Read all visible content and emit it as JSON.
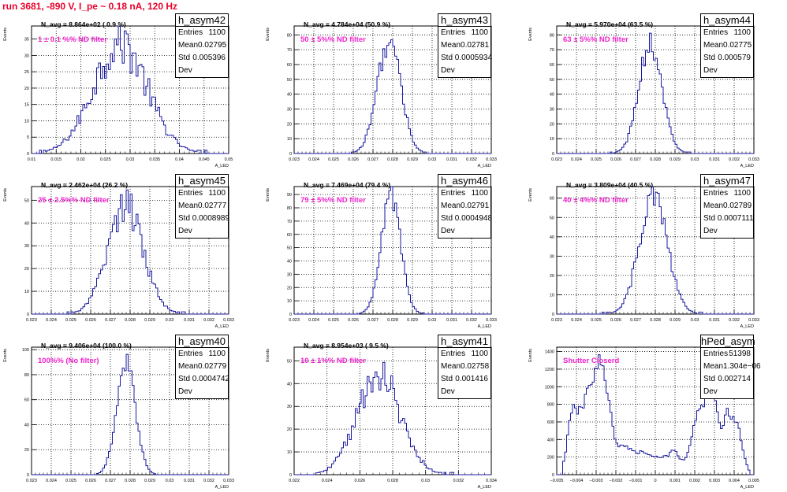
{
  "page_title": "run 3681,  -890 V, I_pe ~ 0.18 nA, 120 Hz",
  "ylabel": "Events",
  "xlabel": "A_LED",
  "colors": {
    "hist": "#1a1aa0",
    "filter_label": "#ee22cc",
    "title": "#e8002a"
  },
  "chart_data": [
    {
      "type": "histogram",
      "name": "h_asym42",
      "navg": "N_avg = 8.864e+02 ( 0.9 %)",
      "filter": "1 ± 0.1 %% ND filter",
      "stats": [
        [
          "Entries",
          "1100"
        ],
        [
          "Mean",
          "0.02795"
        ],
        [
          "Std Dev",
          "0.005396"
        ]
      ],
      "xlim": [
        0.01,
        0.05
      ],
      "ylim": [
        0,
        39
      ],
      "xticks": [
        "0.01",
        "0.015",
        "0.02",
        "0.025",
        "0.03",
        "0.035",
        "0.04",
        "0.045",
        "0.05"
      ],
      "yticks": [
        5,
        10,
        15,
        20,
        25,
        30,
        35
      ],
      "dist": {
        "mean": 0.02795,
        "std": 0.005396,
        "peak": 34,
        "noise": 0.22
      }
    },
    {
      "type": "histogram",
      "name": "h_asym43",
      "navg": "N_avg = 4.784e+04 (50.9 %)",
      "filter": "50 ± 5%% ND filter",
      "stats": [
        [
          "Entries",
          "1100"
        ],
        [
          "Mean",
          "0.02781"
        ],
        [
          "Std Dev",
          "0.0005934"
        ]
      ],
      "xlim": [
        0.023,
        0.033
      ],
      "ylim": [
        0,
        86
      ],
      "xticks": [
        "0.023",
        "0.024",
        "0.025",
        "0.026",
        "0.027",
        "0.028",
        "0.029",
        "0.03",
        "0.031",
        "0.032",
        "0.033"
      ],
      "yticks": [
        10,
        20,
        30,
        40,
        50,
        60,
        70,
        80
      ],
      "dist": {
        "mean": 0.02781,
        "std": 0.0005934,
        "peak": 76,
        "noise": 0.12
      }
    },
    {
      "type": "histogram",
      "name": "h_asym44",
      "navg": "N_avg = 5.970e+04 (63.5 %)",
      "filter": "63 ± 5%% ND filter",
      "stats": [
        [
          "Entries",
          "1100"
        ],
        [
          "Mean",
          "0.02775"
        ],
        [
          "Std Dev",
          "0.000579"
        ]
      ],
      "xlim": [
        0.023,
        0.033
      ],
      "ylim": [
        0,
        86
      ],
      "xticks": [
        "0.023",
        "0.024",
        "0.025",
        "0.026",
        "0.027",
        "0.028",
        "0.029",
        "0.03",
        "0.031",
        "0.032",
        "0.033"
      ],
      "yticks": [
        10,
        20,
        30,
        40,
        50,
        60,
        70,
        80
      ],
      "dist": {
        "mean": 0.02775,
        "std": 0.000579,
        "peak": 75,
        "noise": 0.12
      }
    },
    {
      "type": "histogram",
      "name": "h_asym45",
      "navg": "N_avg = 2.462e+04 (26.2 %)",
      "filter": "25 ± 2.5%% ND filter",
      "stats": [
        [
          "Entries",
          "1100"
        ],
        [
          "Mean",
          "0.02777"
        ],
        [
          "Std Dev",
          "0.0008989"
        ]
      ],
      "xlim": [
        0.023,
        0.033
      ],
      "ylim": [
        0,
        56
      ],
      "xticks": [
        "0.023",
        "0.024",
        "0.025",
        "0.026",
        "0.027",
        "0.028",
        "0.029",
        "0.03",
        "0.031",
        "0.032",
        "0.033"
      ],
      "yticks": [
        10,
        20,
        30,
        40,
        50
      ],
      "dist": {
        "mean": 0.02777,
        "std": 0.0008989,
        "peak": 48,
        "noise": 0.18
      }
    },
    {
      "type": "histogram",
      "name": "h_asym46",
      "navg": "N_avg = 7.469e+04 (79.4 %)",
      "filter": "79 ± 5%% ND filter",
      "stats": [
        [
          "Entries",
          "1100"
        ],
        [
          "Mean",
          "0.02791"
        ],
        [
          "Std Dev",
          "0.0004948"
        ]
      ],
      "xlim": [
        0.023,
        0.033
      ],
      "ylim": [
        0,
        96
      ],
      "xticks": [
        "0.023",
        "0.024",
        "0.025",
        "0.026",
        "0.027",
        "0.028",
        "0.029",
        "0.03",
        "0.031",
        "0.032",
        "0.033"
      ],
      "yticks": [
        10,
        20,
        30,
        40,
        50,
        60,
        70,
        80,
        90
      ],
      "dist": {
        "mean": 0.02791,
        "std": 0.0004948,
        "peak": 88,
        "noise": 0.1
      }
    },
    {
      "type": "histogram",
      "name": "h_asym47",
      "navg": "N_avg = 3.809e+04 (40.5 %)",
      "filter": "40 ± 4%% ND filter",
      "stats": [
        [
          "Entries",
          "1100"
        ],
        [
          "Mean",
          "0.02789"
        ],
        [
          "Std Dev",
          "0.0007111"
        ]
      ],
      "xlim": [
        0.023,
        0.033
      ],
      "ylim": [
        0,
        66
      ],
      "xticks": [
        "0.023",
        "0.024",
        "0.025",
        "0.026",
        "0.027",
        "0.028",
        "0.029",
        "0.03",
        "0.031",
        "0.032",
        "0.033"
      ],
      "yticks": [
        10,
        20,
        30,
        40,
        50,
        60
      ],
      "dist": {
        "mean": 0.02789,
        "std": 0.0007111,
        "peak": 60,
        "noise": 0.15
      }
    },
    {
      "type": "histogram",
      "name": "h_asym40",
      "navg": "N_avg = 9.406e+04 (100.0 %)",
      "filter": "100%% (No filter)",
      "stats": [
        [
          "Entries",
          "1100"
        ],
        [
          "Mean",
          "0.02779"
        ],
        [
          "Std Dev",
          "0.0004742"
        ]
      ],
      "xlim": [
        0.023,
        0.033
      ],
      "ylim": [
        0,
        102
      ],
      "xticks": [
        "0.023",
        "0.024",
        "0.025",
        "0.026",
        "0.027",
        "0.028",
        "0.029",
        "0.03",
        "0.031",
        "0.032",
        "0.033"
      ],
      "yticks": [
        20,
        40,
        60,
        80,
        100
      ],
      "dist": {
        "mean": 0.02779,
        "std": 0.0004742,
        "peak": 90,
        "noise": 0.08
      }
    },
    {
      "type": "histogram",
      "name": "h_asym41",
      "navg": "N_avg = 8.954e+03 ( 9.5 %)",
      "filter": "10 ± 1%% ND filter",
      "stats": [
        [
          "Entries",
          "1100"
        ],
        [
          "Mean",
          "0.02758"
        ],
        [
          "Std Dev",
          "0.001416"
        ]
      ],
      "xlim": [
        0.022,
        0.035
      ],
      "ylim": [
        0,
        56
      ],
      "xticks": [
        "0.022",
        "0.024",
        "0.026",
        "0.028",
        "0.03",
        "0.032",
        "0.034"
      ],
      "yticks": [
        10,
        20,
        30,
        40,
        50
      ],
      "dist": {
        "mean": 0.02758,
        "std": 0.001416,
        "peak": 45,
        "noise": 0.2
      }
    },
    {
      "type": "histogram",
      "name": "hPed_asym",
      "navg": "",
      "filter": "Shutter Closerd",
      "stats": [
        [
          "Entries",
          "51398"
        ],
        [
          "Mean",
          "1.304e−06"
        ],
        [
          "Std Dev",
          "0.002714"
        ]
      ],
      "xlim": [
        -0.005,
        0.005
      ],
      "ylim": [
        0,
        1450
      ],
      "xticks": [
        "−0.005",
        "−0.004",
        "−0.003",
        "−0.002",
        "−0.001",
        "0",
        "0.001",
        "0.002",
        "0.003",
        "0.004",
        "0.005"
      ],
      "yticks": [
        200,
        400,
        600,
        800,
        1000,
        1200,
        1400
      ],
      "dist": {
        "pedestal": true,
        "peak": 1300,
        "noise": 0.08
      }
    }
  ]
}
